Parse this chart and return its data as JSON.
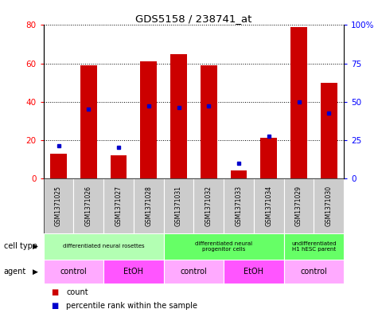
{
  "title": "GDS5158 / 238741_at",
  "samples": [
    "GSM1371025",
    "GSM1371026",
    "GSM1371027",
    "GSM1371028",
    "GSM1371031",
    "GSM1371032",
    "GSM1371033",
    "GSM1371034",
    "GSM1371029",
    "GSM1371030"
  ],
  "counts": [
    13,
    59,
    12,
    61,
    65,
    59,
    4,
    21,
    79,
    50
  ],
  "percentiles_left_axis": [
    17,
    36,
    16,
    38,
    37,
    38,
    8,
    22,
    40,
    34
  ],
  "ylim_left": [
    0,
    80
  ],
  "ylim_right": [
    0,
    100
  ],
  "yticks_left": [
    0,
    20,
    40,
    60,
    80
  ],
  "yticks_right": [
    0,
    25,
    50,
    75,
    100
  ],
  "ytick_labels_right": [
    "0",
    "25",
    "50",
    "75",
    "100%"
  ],
  "bar_color": "#cc0000",
  "percentile_color": "#0000cc",
  "cell_type_groups": [
    {
      "label": "differentiated neural rosettes",
      "start": 0,
      "end": 4,
      "color": "#b3ffb3"
    },
    {
      "label": "differentiated neural\nprogenitor cells",
      "start": 4,
      "end": 8,
      "color": "#66ff66"
    },
    {
      "label": "undifferentiated\nH1 hESC parent",
      "start": 8,
      "end": 10,
      "color": "#66ff66"
    }
  ],
  "agent_groups": [
    {
      "label": "control",
      "start": 0,
      "end": 2,
      "color": "#ffaaff"
    },
    {
      "label": "EtOH",
      "start": 2,
      "end": 4,
      "color": "#ff55ff"
    },
    {
      "label": "control",
      "start": 4,
      "end": 6,
      "color": "#ffaaff"
    },
    {
      "label": "EtOH",
      "start": 6,
      "end": 8,
      "color": "#ff55ff"
    },
    {
      "label": "control",
      "start": 8,
      "end": 10,
      "color": "#ffaaff"
    }
  ],
  "cell_type_label": "cell type",
  "agent_label": "agent",
  "legend_count": "count",
  "legend_percentile": "percentile rank within the sample",
  "sample_bg_color": "#cccccc",
  "fig_width": 4.75,
  "fig_height": 3.93,
  "dpi": 100
}
